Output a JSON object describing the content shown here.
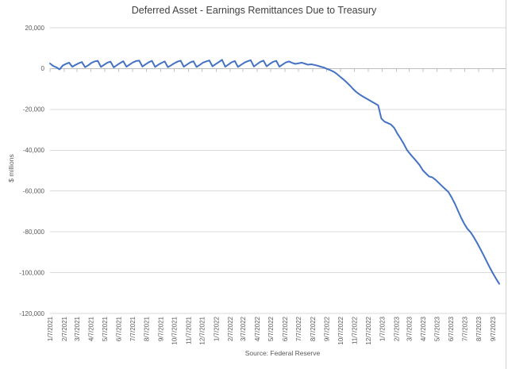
{
  "chart_data": {
    "type": "line",
    "title": "Deferred Asset - Earnings Remittances Due to Treasury",
    "ylabel": "$ millions",
    "source": "Source: Federal Reserve",
    "legend": "none",
    "grid": "horizontal",
    "colors": {
      "line": "#4472c4",
      "grid": "#d9d9d9",
      "axis": "#bfbfbf",
      "border": "#d0d0d0",
      "title_text": "#404040",
      "label_text": "#595959"
    },
    "ylim": [
      -120000,
      20000
    ],
    "y_ticks": [
      20000,
      0,
      -20000,
      -40000,
      -60000,
      -80000,
      -100000,
      -120000
    ],
    "y_tick_labels": [
      "20,000",
      "0",
      "-20,000",
      "-40,000",
      "-60,000",
      "-80,000",
      "-100,000",
      "-120,000"
    ],
    "x_tick_labels": [
      "1/7/2021",
      "2/7/2021",
      "3/7/2021",
      "4/7/2021",
      "5/7/2021",
      "6/7/2021",
      "7/7/2021",
      "8/7/2021",
      "9/7/2021",
      "10/7/2021",
      "11/7/2021",
      "12/7/2021",
      "1/7/2022",
      "2/7/2022",
      "3/7/2022",
      "4/7/2022",
      "5/7/2022",
      "6/7/2022",
      "7/7/2022",
      "8/7/2022",
      "9/7/2022",
      "10/7/2022",
      "11/7/2022",
      "12/7/2022",
      "1/7/2023",
      "2/7/2023",
      "3/7/2023",
      "4/7/2023",
      "5/7/2023",
      "6/7/2023",
      "7/7/2023",
      "8/7/2023",
      "9/7/2023"
    ],
    "x": [
      "1/7/2021",
      "1/14/2021",
      "1/21/2021",
      "1/28/2021",
      "2/4/2021",
      "2/11/2021",
      "2/18/2021",
      "2/25/2021",
      "3/4/2021",
      "3/11/2021",
      "3/18/2021",
      "3/25/2021",
      "4/1/2021",
      "4/8/2021",
      "4/15/2021",
      "4/22/2021",
      "4/29/2021",
      "5/6/2021",
      "5/13/2021",
      "5/20/2021",
      "5/27/2021",
      "6/3/2021",
      "6/10/2021",
      "6/17/2021",
      "6/24/2021",
      "7/1/2021",
      "7/8/2021",
      "7/15/2021",
      "7/22/2021",
      "7/29/2021",
      "8/5/2021",
      "8/12/2021",
      "8/19/2021",
      "8/26/2021",
      "9/2/2021",
      "9/9/2021",
      "9/16/2021",
      "9/23/2021",
      "9/30/2021",
      "10/7/2021",
      "10/14/2021",
      "10/21/2021",
      "10/28/2021",
      "11/4/2021",
      "11/11/2021",
      "11/18/2021",
      "11/25/2021",
      "12/2/2021",
      "12/9/2021",
      "12/16/2021",
      "12/23/2021",
      "12/30/2021",
      "1/6/2022",
      "1/13/2022",
      "1/20/2022",
      "1/27/2022",
      "2/3/2022",
      "2/10/2022",
      "2/17/2022",
      "2/24/2022",
      "3/3/2022",
      "3/10/2022",
      "3/17/2022",
      "3/24/2022",
      "3/31/2022",
      "4/7/2022",
      "4/14/2022",
      "4/21/2022",
      "4/28/2022",
      "5/5/2022",
      "5/12/2022",
      "5/19/2022",
      "5/26/2022",
      "6/2/2022",
      "6/9/2022",
      "6/16/2022",
      "6/23/2022",
      "6/30/2022",
      "7/7/2022",
      "7/14/2022",
      "7/21/2022",
      "7/28/2022",
      "8/4/2022",
      "8/11/2022",
      "8/18/2022",
      "8/25/2022",
      "9/1/2022",
      "9/8/2022",
      "9/15/2022",
      "9/22/2022",
      "9/29/2022",
      "10/6/2022",
      "10/13/2022",
      "10/20/2022",
      "10/27/2022",
      "11/3/2022",
      "11/10/2022",
      "11/17/2022",
      "11/24/2022",
      "12/1/2022",
      "12/8/2022",
      "12/15/2022",
      "12/22/2022",
      "12/29/2022",
      "1/5/2023",
      "1/12/2023",
      "1/19/2023",
      "1/26/2023",
      "2/2/2023",
      "2/9/2023",
      "2/16/2023",
      "2/23/2023",
      "3/2/2023",
      "3/9/2023",
      "3/16/2023",
      "3/23/2023",
      "3/30/2023",
      "4/6/2023",
      "4/13/2023",
      "4/20/2023",
      "4/27/2023",
      "5/4/2023",
      "5/11/2023",
      "5/18/2023",
      "5/25/2023",
      "6/1/2023",
      "6/8/2023",
      "6/15/2023",
      "6/22/2023",
      "6/29/2023",
      "7/6/2023",
      "7/13/2023",
      "7/20/2023",
      "7/27/2023",
      "8/3/2023",
      "8/10/2023",
      "8/17/2023",
      "8/24/2023",
      "8/31/2023",
      "9/7/2023",
      "9/14/2023",
      "9/21/2023"
    ],
    "values": [
      2500,
      1300,
      600,
      -400,
      1500,
      2300,
      2900,
      900,
      1800,
      2600,
      3200,
      700,
      1600,
      2800,
      3500,
      3800,
      800,
      1900,
      2900,
      3400,
      600,
      1700,
      2700,
      3600,
      900,
      2000,
      3000,
      3700,
      3900,
      1000,
      2100,
      3100,
      3800,
      800,
      1900,
      2800,
      3500,
      700,
      1600,
      2600,
      3400,
      3900,
      900,
      2000,
      3000,
      3600,
      800,
      1800,
      2900,
      3500,
      4000,
      1100,
      2200,
      3200,
      4300,
      900,
      2000,
      3100,
      3700,
      800,
      1900,
      2900,
      3600,
      4100,
      1000,
      2200,
      3300,
      3900,
      1100,
      2300,
      3300,
      3800,
      900,
      2000,
      3000,
      3500,
      2800,
      2300,
      2600,
      2900,
      2400,
      1900,
      2100,
      1800,
      1400,
      900,
      500,
      -200,
      -800,
      -1500,
      -2600,
      -3900,
      -5200,
      -6600,
      -8100,
      -9800,
      -11300,
      -12500,
      -13500,
      -14400,
      -15300,
      -16200,
      -17100,
      -18000,
      -24500,
      -26000,
      -26700,
      -27400,
      -29000,
      -31800,
      -34200,
      -36800,
      -39800,
      -41800,
      -43600,
      -45400,
      -47300,
      -49800,
      -51400,
      -52900,
      -53300,
      -54500,
      -56000,
      -57500,
      -59000,
      -60400,
      -63000,
      -66000,
      -69500,
      -73000,
      -76000,
      -78500,
      -80200,
      -82600,
      -85300,
      -88200,
      -91200,
      -94300,
      -97400,
      -100300,
      -103000,
      -105500
    ]
  }
}
